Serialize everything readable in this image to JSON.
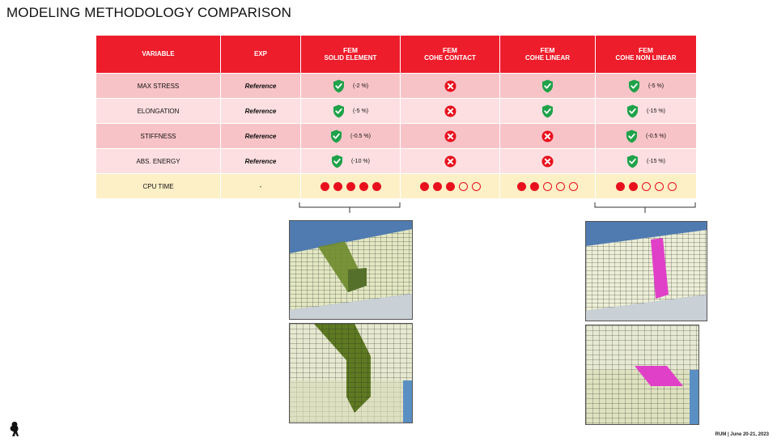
{
  "title": "MODELING METHODOLOGY COMPARISON",
  "table": {
    "headers": [
      {
        "top": "",
        "sub": "VARIABLE"
      },
      {
        "top": "",
        "sub": "EXP"
      },
      {
        "top": "FEM",
        "sub": "SOLID ELEMENT"
      },
      {
        "top": "FEM",
        "sub": "COHE CONTACT"
      },
      {
        "top": "FEM",
        "sub": "COHE LINEAR"
      },
      {
        "top": "FEM",
        "sub": "COHE NON LINEAR"
      }
    ],
    "rows": [
      {
        "variable": "MAX STRESS",
        "exp": "Reference",
        "cells": [
          {
            "status": "check",
            "pct": "(-2 %)"
          },
          {
            "status": "cross",
            "pct": ""
          },
          {
            "status": "check",
            "pct": ""
          },
          {
            "status": "check",
            "pct": "(-5 %)"
          }
        ]
      },
      {
        "variable": "ELONGATION",
        "exp": "Reference",
        "cells": [
          {
            "status": "check",
            "pct": "(-5 %)"
          },
          {
            "status": "cross",
            "pct": ""
          },
          {
            "status": "check",
            "pct": ""
          },
          {
            "status": "check",
            "pct": "(-15 %)"
          }
        ]
      },
      {
        "variable": "STIFFNESS",
        "exp": "Reference",
        "cells": [
          {
            "status": "check",
            "pct": "(-0.5 %)"
          },
          {
            "status": "cross",
            "pct": ""
          },
          {
            "status": "cross",
            "pct": ""
          },
          {
            "status": "check",
            "pct": "(-0.5 %)"
          }
        ]
      },
      {
        "variable": "ABS. ENERGY",
        "exp": "Reference",
        "cells": [
          {
            "status": "check",
            "pct": "(-10 %)"
          },
          {
            "status": "cross",
            "pct": ""
          },
          {
            "status": "cross",
            "pct": ""
          },
          {
            "status": "check",
            "pct": "(-15 %)"
          }
        ]
      }
    ],
    "cpu": {
      "variable": "CPU TIME",
      "exp": "-",
      "ratings": [
        5,
        3,
        2,
        2
      ],
      "max": 5
    }
  },
  "colors": {
    "header": "#ee1d2b",
    "check": "#1fa24a",
    "cross": "#e8101d",
    "solid_band": "#6b8a2a",
    "cohesive_band": "#e040c8"
  },
  "footer": "RUM | June 20-21, 2023",
  "logo": "prancing-horse-logo"
}
